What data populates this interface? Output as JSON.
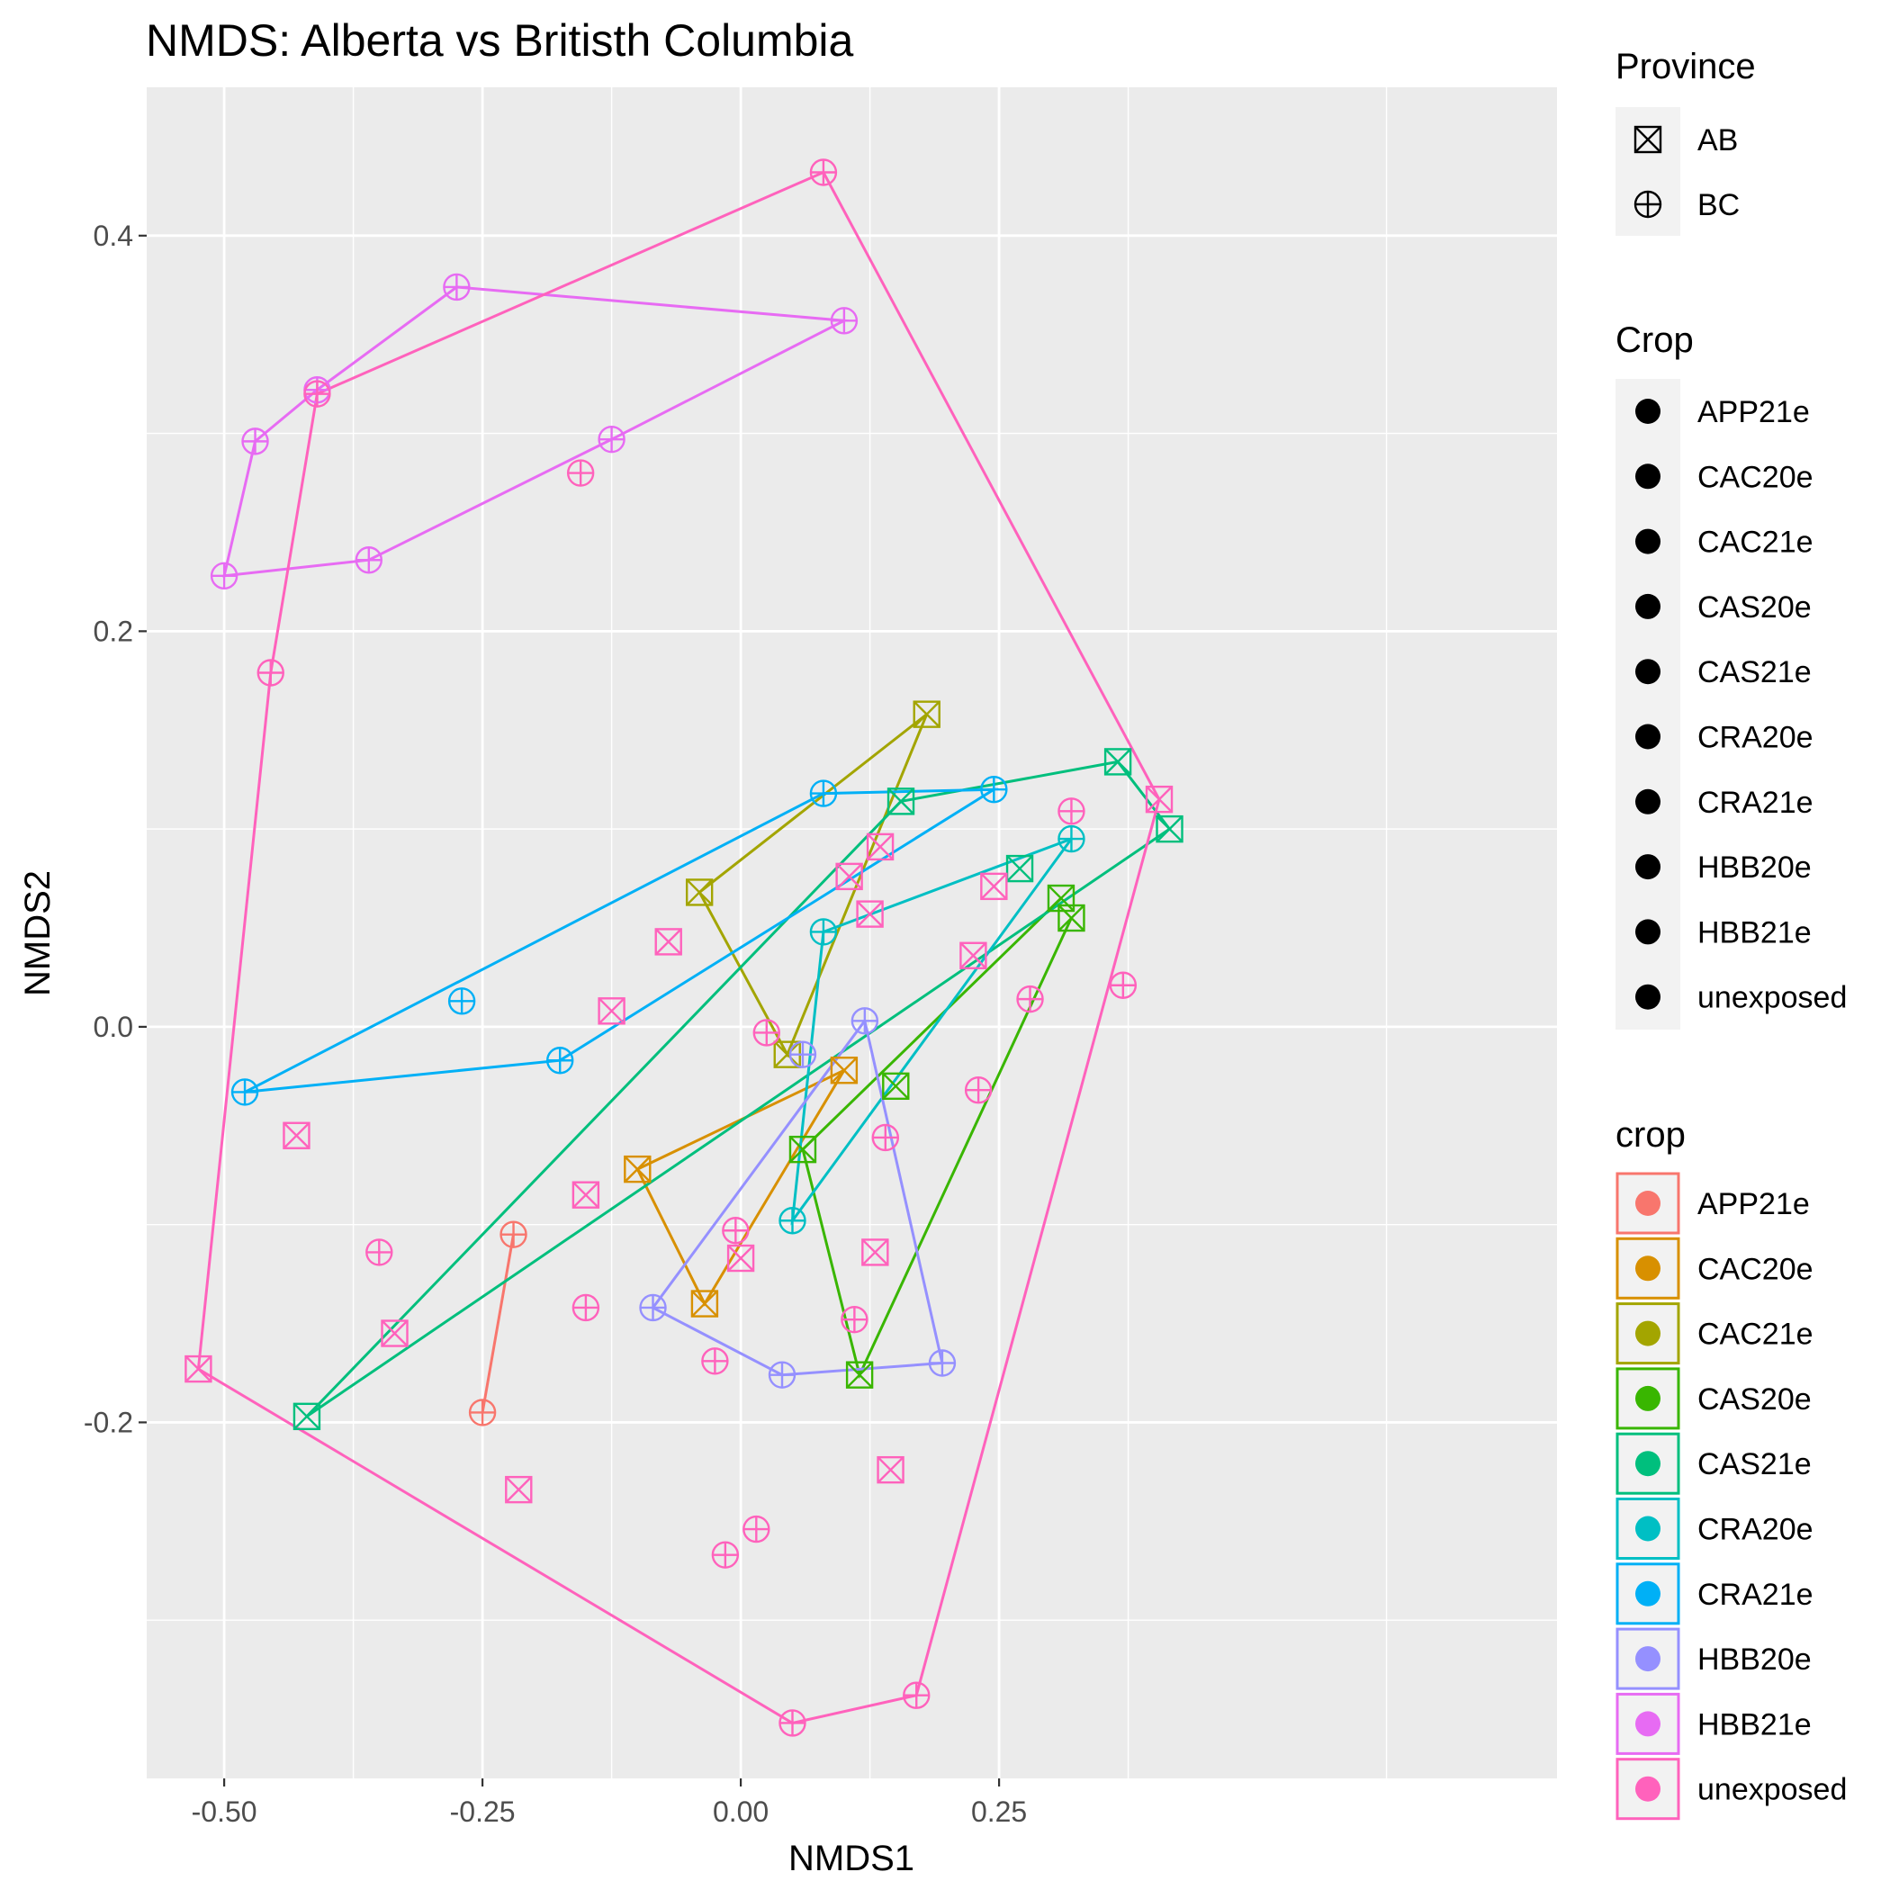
{
  "chart_data": {
    "type": "scatter",
    "title": "NMDS: Alberta vs Britisth Columbia",
    "xlabel": "NMDS1",
    "ylabel": "NMDS2",
    "xlim": [
      -0.575,
      0.79
    ],
    "ylim": [
      -0.38,
      0.475
    ],
    "xticks": [
      -0.5,
      -0.25,
      0.0,
      0.25
    ],
    "xtick_labels": [
      "-0.50",
      "-0.25",
      "0.00",
      "0.25"
    ],
    "yticks": [
      -0.2,
      0.0,
      0.2,
      0.4
    ],
    "ytick_labels": [
      "-0.2",
      "0.0",
      "0.2",
      "0.4"
    ],
    "grid": true,
    "legends": {
      "province": {
        "title": "Province",
        "entries": [
          {
            "label": "AB",
            "shape": "square-x"
          },
          {
            "label": "BC",
            "shape": "circle-plus"
          }
        ]
      },
      "crop_shape": {
        "title": "Crop",
        "entries": [
          "APP21e",
          "CAC20e",
          "CAC21e",
          "CAS20e",
          "CAS21e",
          "CRA20e",
          "CRA21e",
          "HBB20e",
          "HBB21e",
          "unexposed"
        ]
      },
      "crop_color": {
        "title": "crop",
        "entries": [
          "APP21e",
          "CAC20e",
          "CAC21e",
          "CAS20e",
          "CAS21e",
          "CRA20e",
          "CRA21e",
          "HBB20e",
          "HBB21e",
          "unexposed"
        ]
      }
    },
    "series": [
      {
        "name": "APP21e",
        "color": "#F8766D",
        "points": [
          [
            -0.22,
            -0.105,
            "BC"
          ],
          [
            -0.25,
            -0.195,
            "BC"
          ]
        ],
        "hull": [
          [
            -0.22,
            -0.105
          ],
          [
            -0.25,
            -0.195
          ]
        ]
      },
      {
        "name": "CAC20e",
        "color": "#D89000",
        "points": [
          [
            0.1,
            -0.022,
            "AB"
          ],
          [
            -0.1,
            -0.072,
            "AB"
          ],
          [
            -0.035,
            -0.14,
            "AB"
          ]
        ],
        "hull": [
          [
            0.1,
            -0.022
          ],
          [
            -0.1,
            -0.072
          ],
          [
            -0.035,
            -0.14
          ],
          [
            0.1,
            -0.022
          ]
        ]
      },
      {
        "name": "CAC21e",
        "color": "#A3A500",
        "points": [
          [
            0.18,
            0.158,
            "AB"
          ],
          [
            -0.04,
            0.068,
            "AB"
          ],
          [
            0.045,
            -0.014,
            "AB"
          ]
        ],
        "hull": [
          [
            0.18,
            0.158
          ],
          [
            -0.04,
            0.068
          ],
          [
            0.045,
            -0.014
          ],
          [
            0.18,
            0.158
          ]
        ]
      },
      {
        "name": "CAS20e",
        "color": "#39B600",
        "points": [
          [
            0.31,
            0.065,
            "AB"
          ],
          [
            0.32,
            0.055,
            "AB"
          ],
          [
            0.15,
            -0.03,
            "AB"
          ],
          [
            0.06,
            -0.062,
            "AB"
          ],
          [
            0.115,
            -0.176,
            "AB"
          ]
        ],
        "hull": [
          [
            0.31,
            0.065
          ],
          [
            0.06,
            -0.062
          ],
          [
            0.115,
            -0.176
          ],
          [
            0.32,
            0.055
          ]
        ]
      },
      {
        "name": "CAS21e",
        "color": "#00BF7D",
        "points": [
          [
            0.365,
            0.134,
            "AB"
          ],
          [
            0.415,
            0.1,
            "AB"
          ],
          [
            0.155,
            0.114,
            "AB"
          ],
          [
            0.27,
            0.08,
            "AB"
          ],
          [
            -0.42,
            -0.197,
            "AB"
          ]
        ],
        "hull": [
          [
            0.365,
            0.134
          ],
          [
            0.415,
            0.1
          ],
          [
            -0.42,
            -0.197
          ],
          [
            0.155,
            0.114
          ],
          [
            0.365,
            0.134
          ]
        ]
      },
      {
        "name": "CRA20e",
        "color": "#00BFC4",
        "points": [
          [
            0.32,
            0.095,
            "BC"
          ],
          [
            0.08,
            0.048,
            "BC"
          ],
          [
            0.05,
            -0.098,
            "BC"
          ]
        ],
        "hull": [
          [
            0.32,
            0.095
          ],
          [
            0.05,
            -0.098
          ],
          [
            0.08,
            0.048
          ],
          [
            0.32,
            0.095
          ]
        ]
      },
      {
        "name": "CRA21e",
        "color": "#00B0F6",
        "points": [
          [
            0.08,
            0.118,
            "BC"
          ],
          [
            0.245,
            0.12,
            "BC"
          ],
          [
            -0.27,
            0.013,
            "BC"
          ],
          [
            -0.175,
            -0.017,
            "BC"
          ],
          [
            -0.48,
            -0.033,
            "BC"
          ]
        ],
        "hull": [
          [
            0.08,
            0.118
          ],
          [
            0.245,
            0.12
          ],
          [
            -0.175,
            -0.017
          ],
          [
            -0.48,
            -0.033
          ],
          [
            0.08,
            0.118
          ]
        ]
      },
      {
        "name": "HBB20e",
        "color": "#9590FF",
        "points": [
          [
            0.12,
            0.003,
            "BC"
          ],
          [
            0.06,
            -0.014,
            "BC"
          ],
          [
            -0.085,
            -0.142,
            "BC"
          ],
          [
            0.04,
            -0.176,
            "BC"
          ],
          [
            0.195,
            -0.17,
            "BC"
          ]
        ],
        "hull": [
          [
            0.12,
            0.003
          ],
          [
            -0.085,
            -0.142
          ],
          [
            0.04,
            -0.176
          ],
          [
            0.195,
            -0.17
          ],
          [
            0.12,
            0.003
          ]
        ]
      },
      {
        "name": "HBB21e",
        "color": "#E76BF3",
        "points": [
          [
            -0.275,
            0.374,
            "BC"
          ],
          [
            0.1,
            0.357,
            "BC"
          ],
          [
            -0.41,
            0.322,
            "BC"
          ],
          [
            -0.47,
            0.296,
            "BC"
          ],
          [
            -0.125,
            0.297,
            "BC"
          ],
          [
            -0.36,
            0.236,
            "BC"
          ],
          [
            -0.5,
            0.228,
            "BC"
          ]
        ],
        "hull": [
          [
            -0.275,
            0.374
          ],
          [
            0.1,
            0.357
          ],
          [
            -0.125,
            0.297
          ],
          [
            -0.36,
            0.236
          ],
          [
            -0.5,
            0.228
          ],
          [
            -0.47,
            0.296
          ],
          [
            -0.41,
            0.322
          ],
          [
            -0.275,
            0.374
          ]
        ]
      },
      {
        "name": "unexposed",
        "color": "#FF62BC",
        "points": [
          [
            0.08,
            0.432,
            "BC"
          ],
          [
            -0.455,
            0.179,
            "BC"
          ],
          [
            -0.155,
            0.28,
            "BC"
          ],
          [
            0.405,
            0.115,
            "AB"
          ],
          [
            0.32,
            0.109,
            "BC"
          ],
          [
            0.135,
            0.091,
            "AB"
          ],
          [
            0.105,
            0.076,
            "AB"
          ],
          [
            0.245,
            0.071,
            "AB"
          ],
          [
            0.125,
            0.057,
            "AB"
          ],
          [
            -0.07,
            0.043,
            "AB"
          ],
          [
            0.225,
            0.036,
            "AB"
          ],
          [
            0.37,
            0.021,
            "BC"
          ],
          [
            0.28,
            0.014,
            "BC"
          ],
          [
            -0.125,
            0.008,
            "AB"
          ],
          [
            0.025,
            -0.003,
            "BC"
          ],
          [
            0.23,
            -0.032,
            "BC"
          ],
          [
            -0.43,
            -0.055,
            "AB"
          ],
          [
            0.14,
            -0.056,
            "BC"
          ],
          [
            -0.15,
            -0.085,
            "AB"
          ],
          [
            -0.005,
            -0.103,
            "BC"
          ],
          [
            -0.35,
            -0.114,
            "BC"
          ],
          [
            0.13,
            -0.114,
            "AB"
          ],
          [
            0.0,
            -0.117,
            "AB"
          ],
          [
            -0.15,
            -0.142,
            "BC"
          ],
          [
            0.11,
            -0.148,
            "BC"
          ],
          [
            -0.335,
            -0.155,
            "AB"
          ],
          [
            -0.025,
            -0.169,
            "BC"
          ],
          [
            0.145,
            -0.224,
            "AB"
          ],
          [
            -0.215,
            -0.234,
            "AB"
          ],
          [
            0.015,
            -0.254,
            "BC"
          ],
          [
            -0.015,
            -0.267,
            "BC"
          ],
          [
            0.17,
            -0.338,
            "BC"
          ],
          [
            0.05,
            -0.352,
            "BC"
          ],
          [
            -0.525,
            -0.173,
            "AB"
          ],
          [
            -0.41,
            0.32,
            "BC"
          ]
        ],
        "hull": [
          [
            0.08,
            0.432
          ],
          [
            0.405,
            0.115
          ],
          [
            0.17,
            -0.338
          ],
          [
            0.05,
            -0.352
          ],
          [
            -0.525,
            -0.173
          ],
          [
            -0.455,
            0.179
          ],
          [
            -0.41,
            0.32
          ],
          [
            0.08,
            0.432
          ]
        ]
      }
    ]
  }
}
